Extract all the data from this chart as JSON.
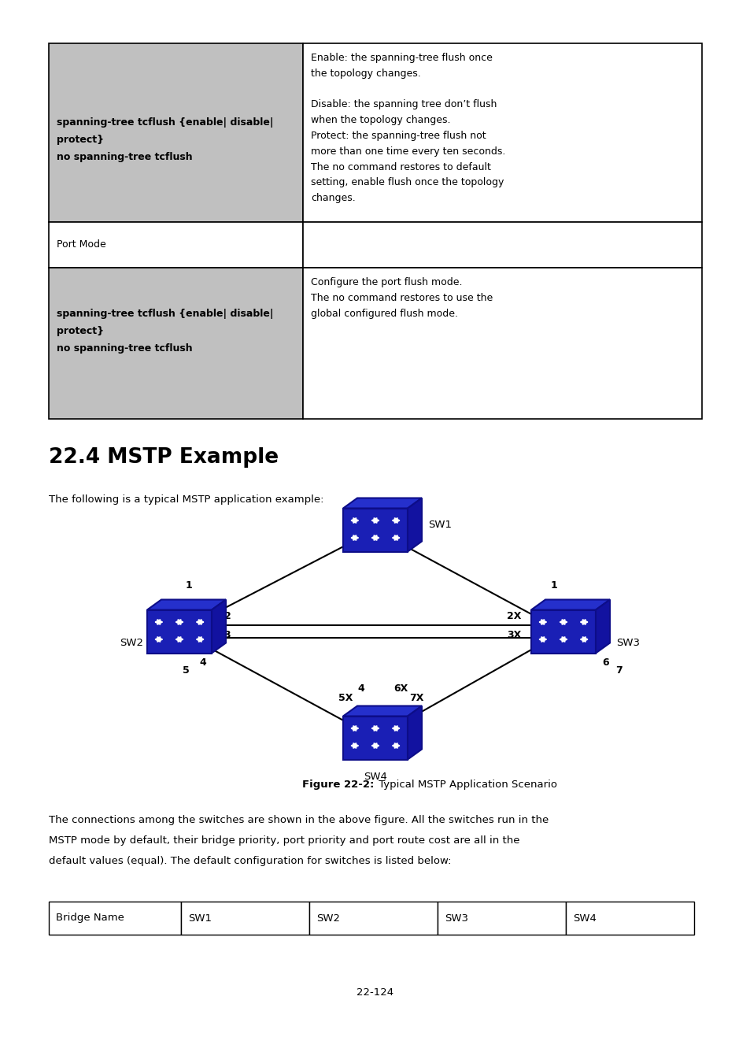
{
  "section_header": "22.4 MSTP Example",
  "intro_text": "The following is a typical MSTP application example:",
  "figure_caption_bold": "Figure 22-2:",
  "figure_caption_normal": " Typical MSTP Application Scenario",
  "body_line1": "The connections among the switches are shown in the above figure. All the switches run in the",
  "body_line2": "MSTP mode by default, their bridge priority, port priority and port route cost are all in the",
  "body_line3": "default values (equal). The default configuration for switches is listed below:",
  "page_number": "22-124",
  "table2_headers": [
    "Bridge Name",
    "SW1",
    "SW2",
    "SW3",
    "SW4"
  ],
  "switch_color_front": "#1a1fb5",
  "switch_color_top": "#2530cc",
  "switch_color_right": "#1212a0",
  "switch_edge_color": "#0d0d88",
  "background_color": "#ffffff"
}
